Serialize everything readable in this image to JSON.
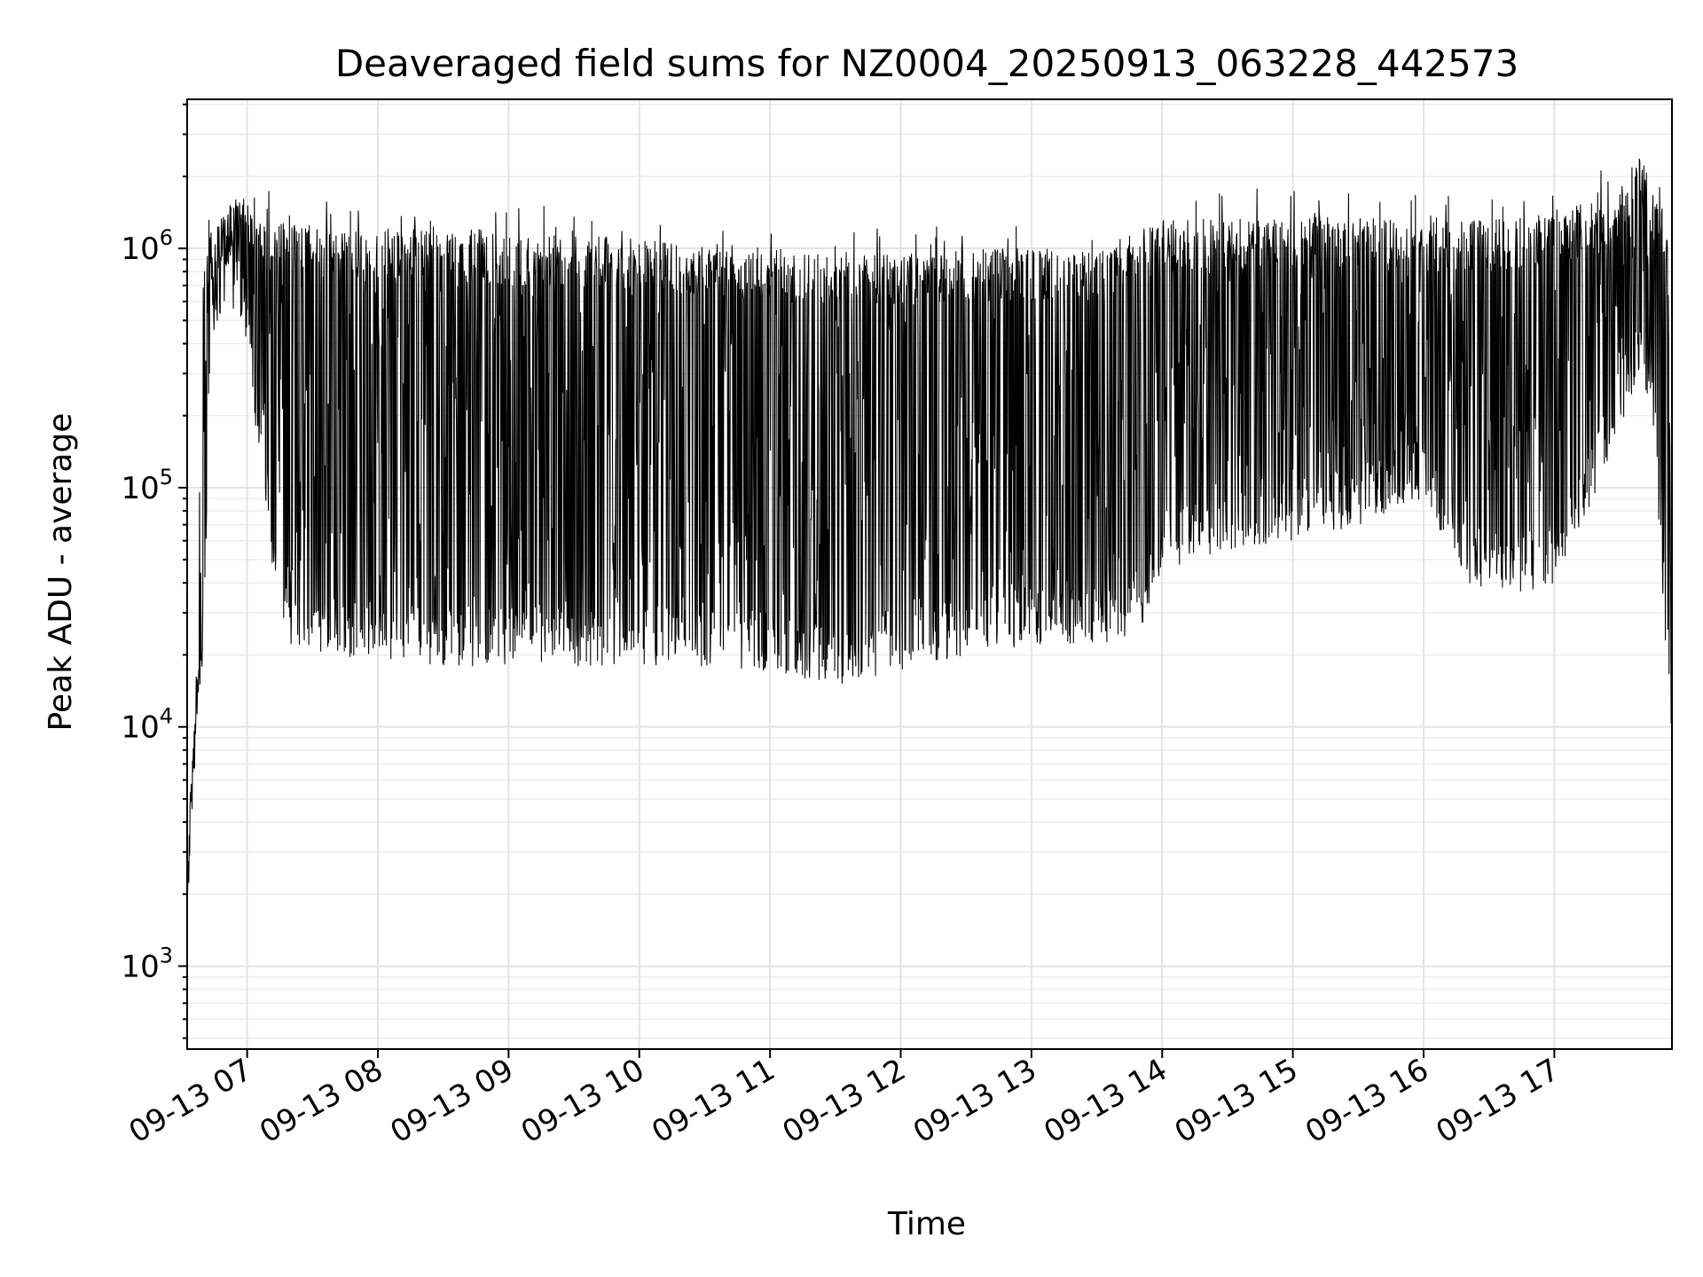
{
  "chart_data": {
    "type": "line",
    "title": "Deaveraged field sums for NZ0004_20250913_063228_442573",
    "xlabel": "Time",
    "ylabel": "Peak ADU - average",
    "y_scale": "log",
    "ylim": [
      450,
      4200000
    ],
    "xlim": [
      "2025-09-13 06:32:28",
      "2025-09-13 17:54:00"
    ],
    "grid": true,
    "legend": "none",
    "line_color": "#000000",
    "x_ticks": [
      {
        "t": "2025-09-13 07:00",
        "label": "09-13 07"
      },
      {
        "t": "2025-09-13 08:00",
        "label": "09-13 08"
      },
      {
        "t": "2025-09-13 09:00",
        "label": "09-13 09"
      },
      {
        "t": "2025-09-13 10:00",
        "label": "09-13 10"
      },
      {
        "t": "2025-09-13 11:00",
        "label": "09-13 11"
      },
      {
        "t": "2025-09-13 12:00",
        "label": "09-13 12"
      },
      {
        "t": "2025-09-13 13:00",
        "label": "09-13 13"
      },
      {
        "t": "2025-09-13 14:00",
        "label": "09-13 14"
      },
      {
        "t": "2025-09-13 15:00",
        "label": "09-13 15"
      },
      {
        "t": "2025-09-13 16:00",
        "label": "09-13 16"
      },
      {
        "t": "2025-09-13 17:00",
        "label": "09-13 17"
      }
    ],
    "y_ticks": [
      {
        "value": 1000,
        "base": "10",
        "exp": "3"
      },
      {
        "value": 10000,
        "base": "10",
        "exp": "4"
      },
      {
        "value": 100000,
        "base": "10",
        "exp": "5"
      },
      {
        "value": 1000000,
        "base": "10",
        "exp": "6"
      }
    ],
    "series": [
      {
        "envelope": [
          {
            "t": "2025-09-13 06:32",
            "high": 1500,
            "low": 1500
          },
          {
            "t": "2025-09-13 06:34",
            "high": 6000,
            "low": 3000
          },
          {
            "t": "2025-09-13 06:37",
            "high": 20000,
            "low": 10000
          },
          {
            "t": "2025-09-13 06:40",
            "high": 750000,
            "low": 15000
          },
          {
            "t": "2025-09-13 06:43",
            "high": 1200000,
            "low": 400000
          },
          {
            "t": "2025-09-13 06:50",
            "high": 1500000,
            "low": 600000
          },
          {
            "t": "2025-09-13 06:58",
            "high": 1700000,
            "low": 500000
          },
          {
            "t": "2025-09-13 07:05",
            "high": 1400000,
            "low": 150000
          },
          {
            "t": "2025-09-13 07:12",
            "high": 1300000,
            "low": 40000
          },
          {
            "t": "2025-09-13 07:20",
            "high": 1250000,
            "low": 22000
          },
          {
            "t": "2025-09-13 07:40",
            "high": 1200000,
            "low": 20000
          },
          {
            "t": "2025-09-13 08:00",
            "high": 1200000,
            "low": 19000
          },
          {
            "t": "2025-09-13 08:30",
            "high": 1200000,
            "low": 18000
          },
          {
            "t": "2025-09-13 09:00",
            "high": 1150000,
            "low": 18000
          },
          {
            "t": "2025-09-13 09:30",
            "high": 1150000,
            "low": 18000
          },
          {
            "t": "2025-09-13 10:00",
            "high": 1100000,
            "low": 18000
          },
          {
            "t": "2025-09-13 10:30",
            "high": 1050000,
            "low": 18000
          },
          {
            "t": "2025-09-13 11:00",
            "high": 1000000,
            "low": 17000
          },
          {
            "t": "2025-09-13 11:30",
            "high": 950000,
            "low": 15000
          },
          {
            "t": "2025-09-13 12:00",
            "high": 950000,
            "low": 17000
          },
          {
            "t": "2025-09-13 12:30",
            "high": 1000000,
            "low": 20000
          },
          {
            "t": "2025-09-13 13:00",
            "high": 1000000,
            "low": 22000
          },
          {
            "t": "2025-09-13 13:30",
            "high": 1000000,
            "low": 22000
          },
          {
            "t": "2025-09-13 13:50",
            "high": 1200000,
            "low": 25000
          },
          {
            "t": "2025-09-13 14:00",
            "high": 1300000,
            "low": 45000
          },
          {
            "t": "2025-09-13 14:30",
            "high": 1350000,
            "low": 55000
          },
          {
            "t": "2025-09-13 15:00",
            "high": 1350000,
            "low": 60000
          },
          {
            "t": "2025-09-13 15:30",
            "high": 1350000,
            "low": 70000
          },
          {
            "t": "2025-09-13 16:00",
            "high": 1300000,
            "low": 90000
          },
          {
            "t": "2025-09-13 16:20",
            "high": 1300000,
            "low": 40000
          },
          {
            "t": "2025-09-13 16:40",
            "high": 1350000,
            "low": 35000
          },
          {
            "t": "2025-09-13 17:00",
            "high": 1450000,
            "low": 40000
          },
          {
            "t": "2025-09-13 17:20",
            "high": 1550000,
            "low": 100000
          },
          {
            "t": "2025-09-13 17:40",
            "high": 2500000,
            "low": 300000
          },
          {
            "t": "2025-09-13 17:45",
            "high": 1800000,
            "low": 200000
          },
          {
            "t": "2025-09-13 17:52",
            "high": 1500000,
            "low": 15000
          },
          {
            "t": "2025-09-13 17:54",
            "high": 15000,
            "low": 9000
          }
        ]
      }
    ]
  }
}
